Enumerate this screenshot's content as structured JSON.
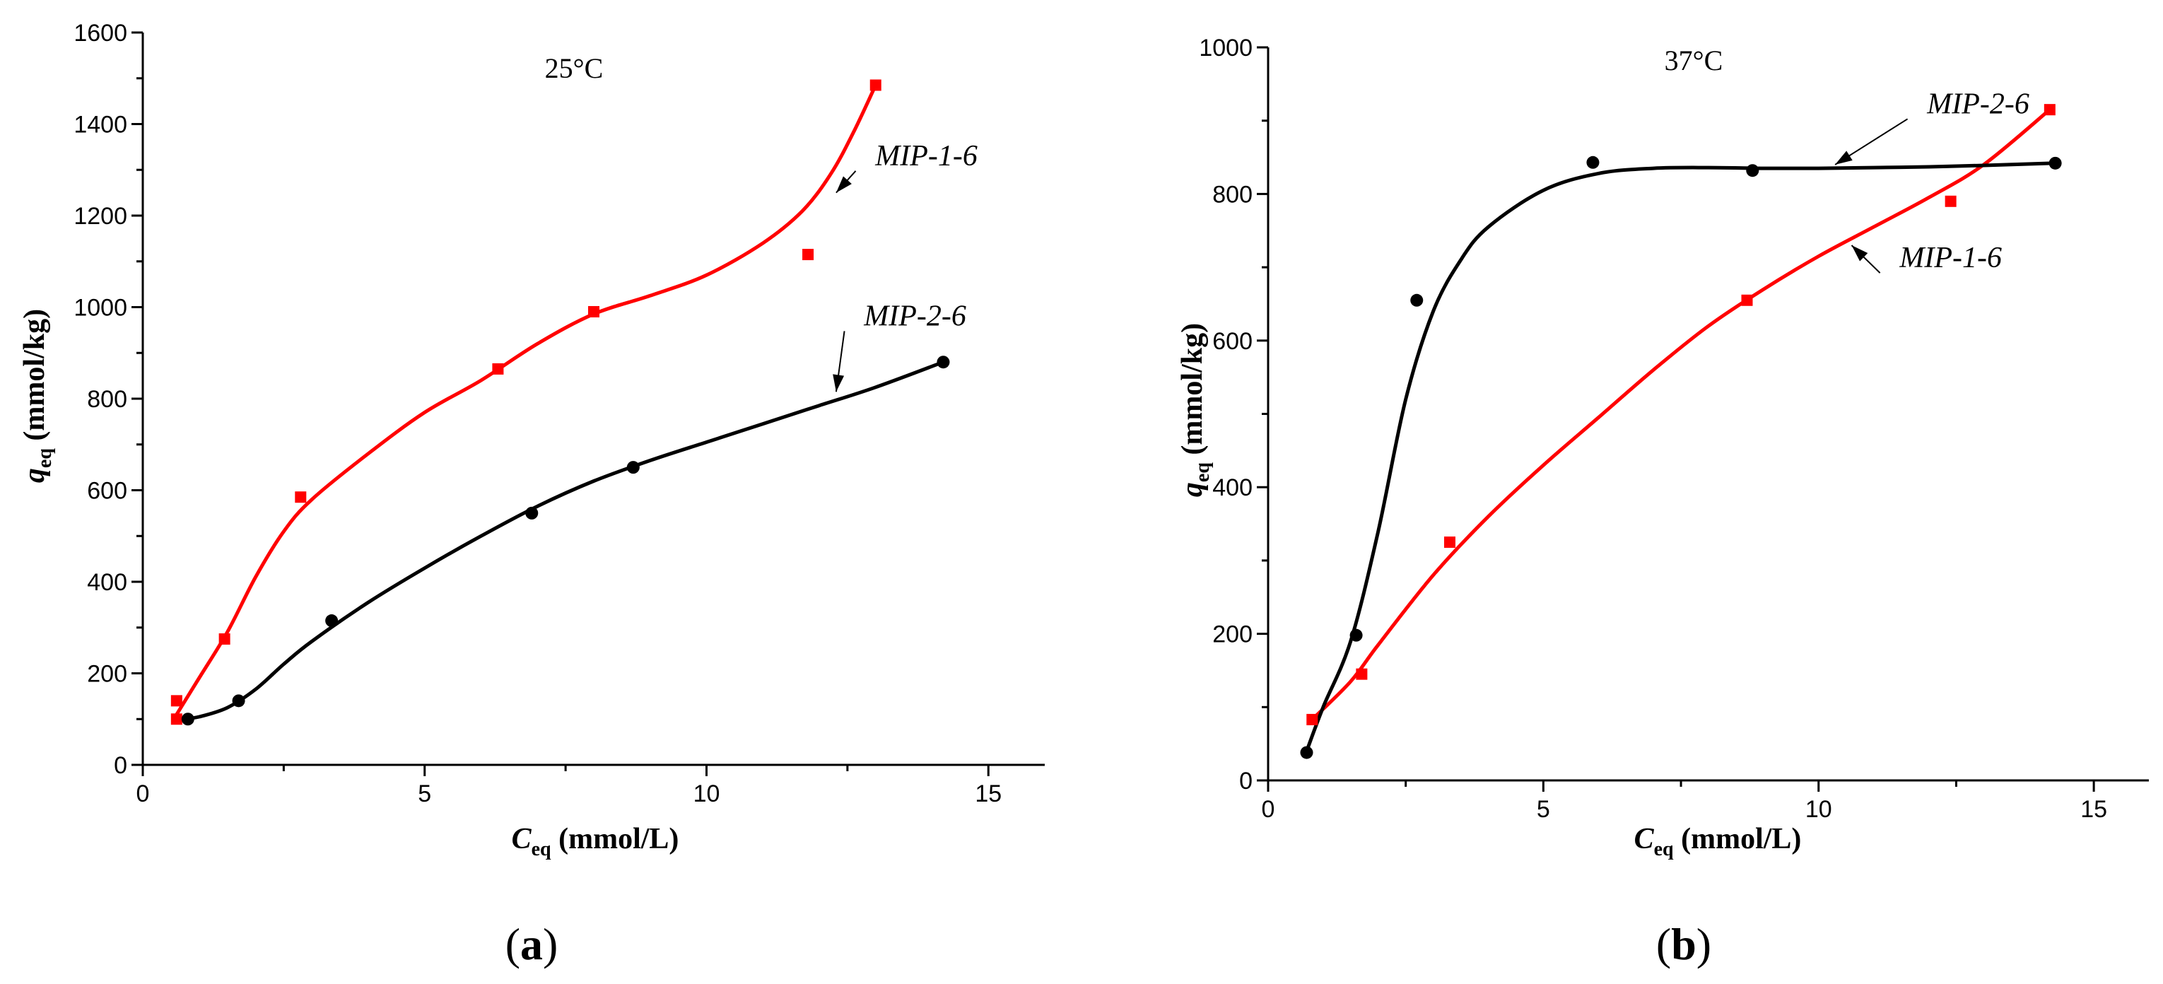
{
  "colors": {
    "red": "#ff0000",
    "black": "#000000"
  },
  "chart_data": [
    {
      "type": "scatter",
      "panel": "a",
      "caption_open": "(",
      "caption_letter": "a",
      "caption_close": ")",
      "title": "25°C",
      "xlabel_main": "C",
      "xlabel_sub": "eq",
      "xlabel_unit": " (mmol/L)",
      "ylabel_main": "q",
      "ylabel_sub": "eq",
      "ylabel_unit": " (mmol/kg)",
      "xlim": [
        0,
        16
      ],
      "ylim": [
        0,
        1600
      ],
      "xticks": [
        0,
        5,
        10,
        15
      ],
      "yticks": [
        0,
        200,
        400,
        600,
        800,
        1000,
        1200,
        1400,
        1600
      ],
      "grid": false,
      "series": [
        {
          "name": "MIP-1-6",
          "color": "#ff0000",
          "marker": "square",
          "points": [
            [
              0.6,
              100
            ],
            [
              0.6,
              140
            ],
            [
              1.45,
              275
            ],
            [
              2.8,
              585
            ],
            [
              6.3,
              865
            ],
            [
              8.0,
              990
            ],
            [
              11.8,
              1115
            ],
            [
              13.0,
              1485
            ]
          ],
          "curve": [
            [
              0.6,
              110
            ],
            [
              1.0,
              190
            ],
            [
              1.5,
              290
            ],
            [
              2.0,
              410
            ],
            [
              2.5,
              510
            ],
            [
              3.0,
              580
            ],
            [
              4.0,
              680
            ],
            [
              5.0,
              770
            ],
            [
              6.0,
              840
            ],
            [
              7.0,
              920
            ],
            [
              8.0,
              985
            ],
            [
              9.0,
              1025
            ],
            [
              10.0,
              1070
            ],
            [
              11.0,
              1140
            ],
            [
              11.7,
              1210
            ],
            [
              12.2,
              1290
            ],
            [
              12.6,
              1380
            ],
            [
              13.0,
              1485
            ]
          ]
        },
        {
          "name": "MIP-2-6",
          "color": "#000000",
          "marker": "circle",
          "points": [
            [
              0.8,
              100
            ],
            [
              1.7,
              140
            ],
            [
              3.35,
              315
            ],
            [
              6.9,
              550
            ],
            [
              8.7,
              650
            ],
            [
              14.2,
              880
            ]
          ],
          "curve": [
            [
              0.7,
              100
            ],
            [
              1.0,
              105
            ],
            [
              1.5,
              125
            ],
            [
              2.0,
              165
            ],
            [
              2.5,
              220
            ],
            [
              3.0,
              270
            ],
            [
              4.0,
              355
            ],
            [
              5.0,
              430
            ],
            [
              6.0,
              500
            ],
            [
              7.0,
              565
            ],
            [
              8.0,
              620
            ],
            [
              9.0,
              665
            ],
            [
              10.0,
              705
            ],
            [
              11.0,
              745
            ],
            [
              12.0,
              785
            ],
            [
              13.0,
              825
            ],
            [
              14.2,
              880
            ]
          ]
        }
      ],
      "annotations": [
        {
          "text": "MIP-1-6",
          "x": 13.9,
          "y": 1310,
          "to": [
            12.3,
            1250
          ]
        },
        {
          "text": "MIP-2-6",
          "x": 13.7,
          "y": 960,
          "to": [
            12.3,
            815
          ]
        }
      ]
    },
    {
      "type": "scatter",
      "panel": "b",
      "caption_open": "(",
      "caption_letter": "b",
      "caption_close": ")",
      "title": "37°C",
      "xlabel_main": "C",
      "xlabel_sub": "eq",
      "xlabel_unit": " (mmol/L)",
      "ylabel_main": "q",
      "ylabel_sub": "eq",
      "ylabel_unit": " (mmol/kg)",
      "xlim": [
        0,
        16
      ],
      "ylim": [
        0,
        1000
      ],
      "xticks": [
        0,
        5,
        10,
        15
      ],
      "yticks": [
        0,
        200,
        400,
        600,
        800,
        1000
      ],
      "grid": false,
      "series": [
        {
          "name": "MIP-1-6",
          "color": "#ff0000",
          "marker": "square",
          "points": [
            [
              0.8,
              83
            ],
            [
              1.7,
              145
            ],
            [
              3.3,
              325
            ],
            [
              8.7,
              655
            ],
            [
              12.4,
              790
            ],
            [
              14.2,
              915
            ]
          ],
          "curve": [
            [
              0.8,
              83
            ],
            [
              1.5,
              135
            ],
            [
              2.0,
              185
            ],
            [
              3.0,
              280
            ],
            [
              4.0,
              360
            ],
            [
              5.0,
              430
            ],
            [
              6.0,
              495
            ],
            [
              7.0,
              560
            ],
            [
              8.0,
              620
            ],
            [
              9.0,
              670
            ],
            [
              10.0,
              715
            ],
            [
              11.0,
              755
            ],
            [
              12.0,
              795
            ],
            [
              13.0,
              840
            ],
            [
              14.2,
              915
            ]
          ]
        },
        {
          "name": "MIP-2-6",
          "color": "#000000",
          "marker": "circle",
          "points": [
            [
              0.7,
              38
            ],
            [
              1.6,
              198
            ],
            [
              2.7,
              655
            ],
            [
              5.9,
              843
            ],
            [
              8.8,
              832
            ],
            [
              14.3,
              842
            ]
          ],
          "curve": [
            [
              0.7,
              40
            ],
            [
              1.0,
              100
            ],
            [
              1.5,
              190
            ],
            [
              2.0,
              340
            ],
            [
              2.5,
              520
            ],
            [
              3.0,
              640
            ],
            [
              3.5,
              710
            ],
            [
              4.0,
              755
            ],
            [
              5.0,
              805
            ],
            [
              6.0,
              828
            ],
            [
              7.0,
              835
            ],
            [
              8.0,
              836
            ],
            [
              9.0,
              835
            ],
            [
              10.0,
              835
            ],
            [
              11.0,
              836
            ],
            [
              12.0,
              837
            ],
            [
              13.0,
              839
            ],
            [
              14.3,
              842
            ]
          ]
        }
      ],
      "annotations": [
        {
          "text": "MIP-2-6",
          "x": 12.9,
          "y": 910,
          "to": [
            10.3,
            840
          ]
        },
        {
          "text": "MIP-1-6",
          "x": 12.4,
          "y": 700,
          "to": [
            10.6,
            730
          ]
        }
      ]
    }
  ]
}
